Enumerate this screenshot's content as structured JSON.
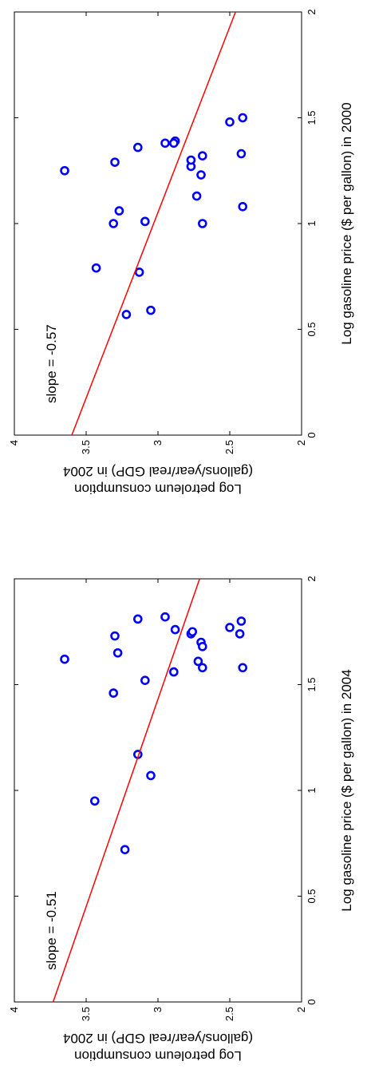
{
  "chart_data": [
    {
      "type": "scatter",
      "annotation": "slope = -0.57",
      "x_label": "Log gasoline price ($ per gallon) in 2000",
      "y_label": [
        "Log petroleum consumption",
        "(gallons/year/real GDP) in 2004"
      ],
      "xlim": [
        0,
        2
      ],
      "xticks": [
        0,
        0.5,
        1,
        1.5,
        2
      ],
      "ylim": [
        2,
        4
      ],
      "yticks": [
        2,
        2.5,
        3,
        3.5,
        4
      ],
      "series": [
        {
          "kind": "points",
          "color": "#0000ff",
          "x": [
            1.25,
            0.79,
            1.0,
            1.29,
            1.06,
            0.77,
            1.36,
            0.57,
            0.59,
            1.01,
            1.38,
            1.39,
            1.38,
            1.27,
            1.3,
            1.13,
            1.23,
            1.32,
            1.0,
            1.48,
            1.33,
            1.5,
            1.08
          ],
          "values": [
            3.65,
            3.43,
            3.31,
            3.3,
            3.27,
            3.13,
            3.14,
            3.22,
            3.05,
            3.09,
            2.95,
            2.88,
            2.89,
            2.77,
            2.77,
            2.73,
            2.7,
            2.69,
            2.69,
            2.5,
            2.42,
            2.41,
            2.41
          ]
        },
        {
          "kind": "line",
          "color": "#ff0000",
          "x": [
            0,
            2
          ],
          "values": [
            3.6,
            2.46
          ]
        }
      ]
    },
    {
      "type": "scatter",
      "annotation": "slope = -0.51",
      "x_label": "Log gasoline price ($ per gallon) in 2004",
      "y_label": [
        "Log petroleum consumption",
        "(gallons/year/real GDP) in 2004"
      ],
      "xlim": [
        0,
        2
      ],
      "xticks": [
        0,
        0.5,
        1,
        1.5,
        2
      ],
      "ylim": [
        2,
        4
      ],
      "yticks": [
        2,
        2.5,
        3,
        3.5,
        4
      ],
      "series": [
        {
          "kind": "points",
          "color": "#0000ff",
          "x": [
            1.62,
            0.95,
            1.46,
            1.73,
            1.65,
            1.17,
            1.81,
            0.72,
            1.07,
            1.52,
            1.82,
            1.56,
            1.76,
            1.74,
            1.75,
            1.61,
            1.7,
            1.68,
            1.58,
            1.77,
            1.74,
            1.8,
            1.58
          ],
          "values": [
            3.65,
            3.44,
            3.31,
            3.3,
            3.28,
            3.14,
            3.14,
            3.23,
            3.05,
            3.09,
            2.95,
            2.89,
            2.88,
            2.77,
            2.76,
            2.72,
            2.7,
            2.69,
            2.69,
            2.5,
            2.43,
            2.42,
            2.41
          ]
        },
        {
          "kind": "line",
          "color": "#ff0000",
          "x": [
            0,
            2
          ],
          "values": [
            3.73,
            2.71
          ]
        }
      ]
    }
  ]
}
